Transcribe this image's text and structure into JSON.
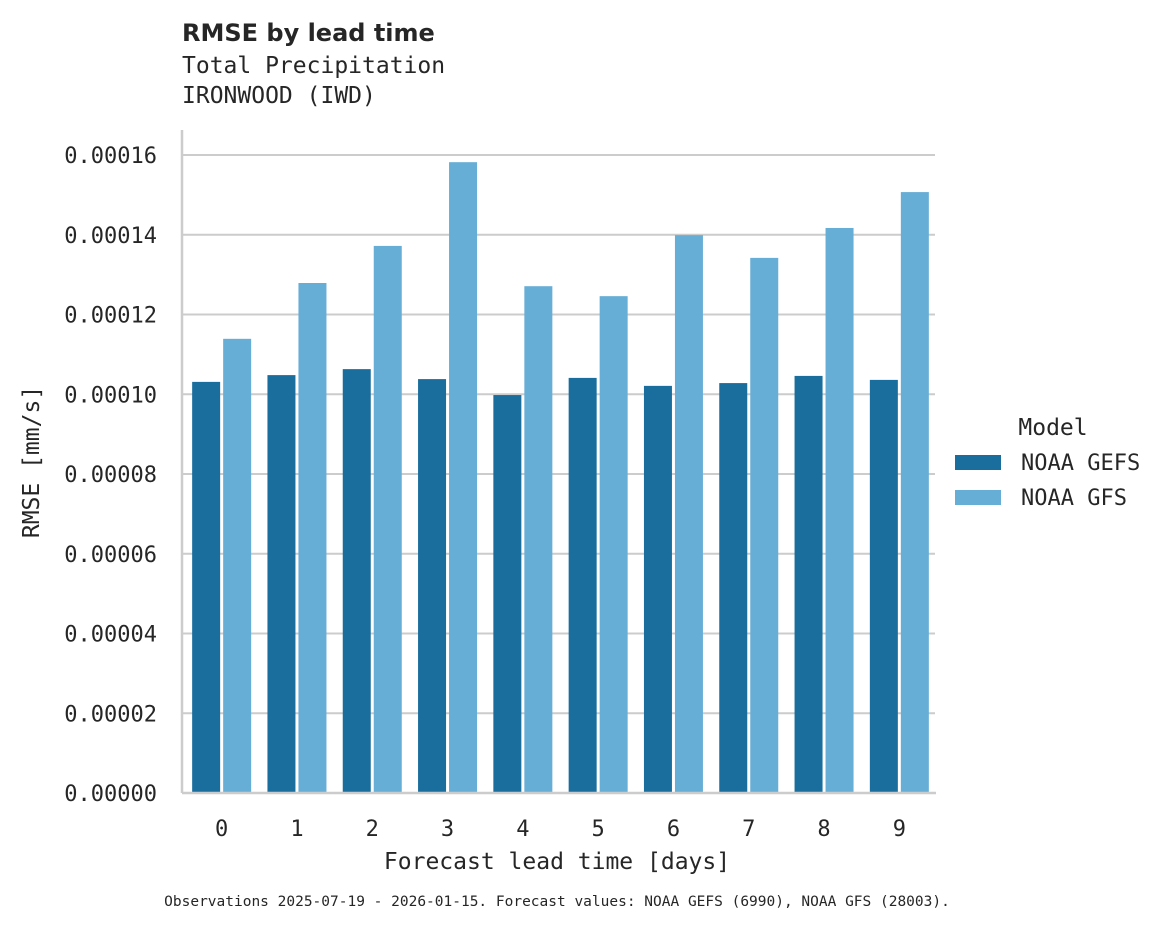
{
  "chart_data": {
    "type": "bar",
    "title": "RMSE by lead time",
    "subtitle": "Total Precipitation",
    "subtitle2": "IRONWOOD (IWD)",
    "xlabel": "Forecast lead time [days]",
    "ylabel": "RMSE [mm/s]",
    "ylim": [
      0,
      0.000166
    ],
    "yticks": [
      0,
      2e-05,
      4e-05,
      6e-05,
      8e-05,
      0.0001,
      0.00012,
      0.00014,
      0.00016
    ],
    "ytick_labels": [
      "0.00000",
      "0.00002",
      "0.00004",
      "0.00006",
      "0.00008",
      "0.00010",
      "0.00012",
      "0.00014",
      "0.00016"
    ],
    "categories": [
      "0",
      "1",
      "2",
      "3",
      "4",
      "5",
      "6",
      "7",
      "8",
      "9"
    ],
    "grid": "horizontal",
    "legend": {
      "title": "Model",
      "placement": "right"
    },
    "series": [
      {
        "name": "NOAA GEFS",
        "color": "#1a6e9e",
        "values": [
          0.0001031,
          0.0001048,
          0.0001063,
          0.0001038,
          9.98e-05,
          0.0001041,
          0.0001021,
          0.0001028,
          0.0001046,
          0.0001036
        ]
      },
      {
        "name": "NOAA GFS",
        "color": "#67aed6",
        "values": [
          0.0001139,
          0.0001279,
          0.0001372,
          0.0001582,
          0.0001271,
          0.0001246,
          0.0001399,
          0.0001342,
          0.0001417,
          0.0001507
        ]
      }
    ],
    "footnote": "Observations 2025-07-19 - 2026-01-15. Forecast values: NOAA GEFS (6990), NOAA GFS (28003)."
  }
}
